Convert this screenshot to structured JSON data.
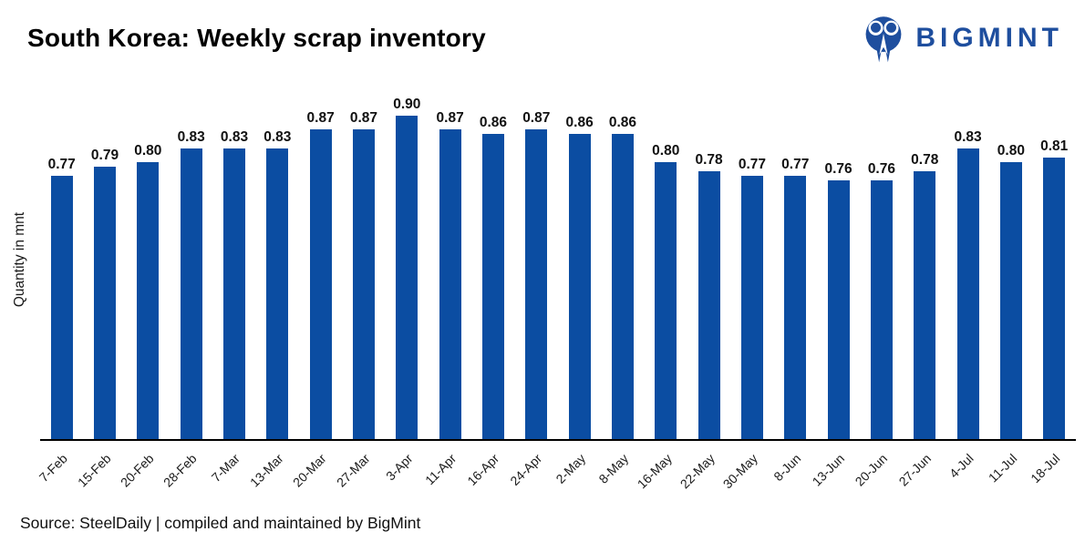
{
  "header": {
    "title": "South Korea: Weekly scrap inventory",
    "brand": "BIGMINT"
  },
  "colors": {
    "bar": "#0b4da2",
    "brand": "#1e4e9e",
    "axis": "#000000",
    "text": "#1a1a1a"
  },
  "chart_data": {
    "type": "bar",
    "title": "South Korea: Weekly scrap inventory",
    "xlabel": "",
    "ylabel": "Quantity in mnt",
    "categories": [
      "7-Feb",
      "15-Feb",
      "20-Feb",
      "28-Feb",
      "7-Mar",
      "13-Mar",
      "20-Mar",
      "27-Mar",
      "3-Apr",
      "11-Apr",
      "16-Apr",
      "24-Apr",
      "2-May",
      "8-May",
      "16-May",
      "22-May",
      "30-May",
      "8-Jun",
      "13-Jun",
      "20-Jun",
      "27-Jun",
      "4-Jul",
      "11-Jul",
      "18-Jul"
    ],
    "values": [
      0.77,
      0.79,
      0.8,
      0.83,
      0.83,
      0.83,
      0.87,
      0.87,
      0.9,
      0.87,
      0.86,
      0.87,
      0.86,
      0.86,
      0.8,
      0.78,
      0.77,
      0.77,
      0.76,
      0.76,
      0.78,
      0.83,
      0.8,
      0.81
    ],
    "ylim": [
      0.2,
      0.95
    ],
    "value_label_decimals": 2,
    "grid": false,
    "legend": false,
    "xtick_rotation": 45
  },
  "footer": {
    "source": "Source: SteelDaily | compiled and maintained by BigMint"
  }
}
